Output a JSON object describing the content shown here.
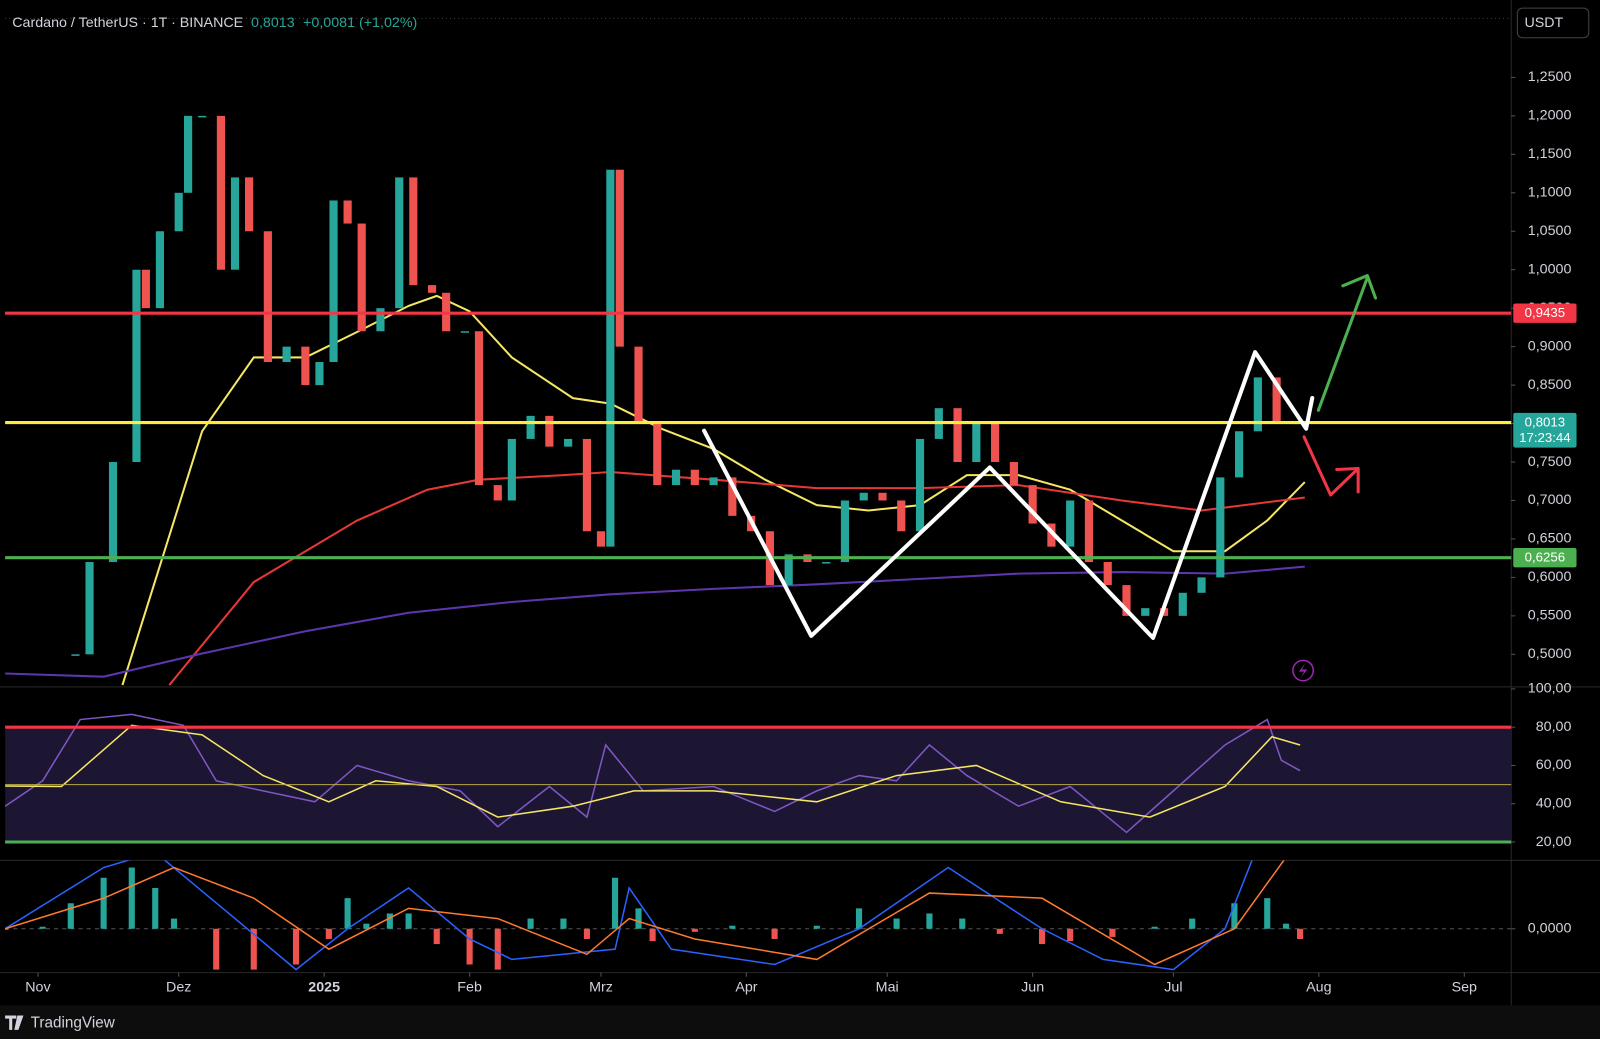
{
  "header": {
    "symbol": "Cardano / TetherUS · 1T · BINANCE",
    "price": "0,8013",
    "change": "+0,0081 (+1,02%)",
    "currency": "USDT"
  },
  "footer": {
    "brand": "TradingView"
  },
  "chart_data": [
    {
      "type": "candlestick",
      "xlim": [
        -7,
        314
      ],
      "xticks": [
        {
          "value": 0,
          "label": "Nov"
        },
        {
          "value": 30,
          "label": "Dez"
        },
        {
          "value": 61,
          "label": "2025"
        },
        {
          "value": 92,
          "label": "Feb"
        },
        {
          "value": 120,
          "label": "Mrz"
        },
        {
          "value": 151,
          "label": "Apr"
        },
        {
          "value": 181,
          "label": "Mai"
        },
        {
          "value": 212,
          "label": "Jun"
        },
        {
          "value": 242,
          "label": "Jul"
        },
        {
          "value": 273,
          "label": "Aug"
        },
        {
          "value": 304,
          "label": "Sep"
        }
      ],
      "ylim": [
        0.459,
        1.344
      ],
      "yticks": [
        {
          "value": 0.5,
          "label": "0,5000"
        },
        {
          "value": 0.55,
          "label": "0,5500"
        },
        {
          "value": 0.6,
          "label": "0,6000"
        },
        {
          "value": 0.65,
          "label": "0,6500"
        },
        {
          "value": 0.7,
          "label": "0,7000"
        },
        {
          "value": 0.75,
          "label": "0,7500"
        },
        {
          "value": 0.8,
          "label": "0,8000"
        },
        {
          "value": 0.85,
          "label": "0,8500"
        },
        {
          "value": 0.9,
          "label": "0,9000"
        },
        {
          "value": 0.95,
          "label": "0,9500"
        },
        {
          "value": 1.0,
          "label": "1,0000"
        },
        {
          "value": 1.05,
          "label": "1,0500"
        },
        {
          "value": 1.1,
          "label": "1,1000"
        },
        {
          "value": 1.15,
          "label": "1,1500"
        },
        {
          "value": 1.2,
          "label": "1,2000"
        },
        {
          "value": 1.25,
          "label": "1,2500"
        }
      ],
      "grid": false,
      "up_color": "#26a69a",
      "down_color": "#ef5350",
      "x": [
        8,
        11,
        16,
        21,
        23,
        26,
        30,
        32,
        35,
        39,
        42,
        45,
        49,
        53,
        57,
        60,
        63,
        66,
        69,
        73,
        77,
        80,
        84,
        87,
        91,
        94,
        98,
        101,
        105,
        109,
        113,
        117,
        120,
        122,
        124,
        128,
        132,
        136,
        140,
        144,
        148,
        152,
        156,
        160,
        164,
        168,
        172,
        176,
        180,
        184,
        188,
        192,
        196,
        200,
        204,
        208,
        212,
        216,
        220,
        224,
        228,
        232,
        236,
        240,
        244,
        248,
        252,
        256,
        260,
        264,
        268
      ],
      "close": [
        0.5,
        0.62,
        0.75,
        1.0,
        0.95,
        1.05,
        1.1,
        1.2,
        1.2,
        1.0,
        1.12,
        1.05,
        0.88,
        0.9,
        0.85,
        0.88,
        1.09,
        1.06,
        0.92,
        0.95,
        1.12,
        0.98,
        0.97,
        0.92,
        0.92,
        0.72,
        0.7,
        0.78,
        0.81,
        0.77,
        0.78,
        0.66,
        0.64,
        1.13,
        0.9,
        0.8,
        0.72,
        0.74,
        0.72,
        0.73,
        0.68,
        0.66,
        0.59,
        0.63,
        0.62,
        0.62,
        0.7,
        0.71,
        0.7,
        0.66,
        0.78,
        0.82,
        0.75,
        0.8,
        0.75,
        0.72,
        0.67,
        0.64,
        0.7,
        0.62,
        0.59,
        0.55,
        0.56,
        0.55,
        0.58,
        0.6,
        0.73,
        0.79,
        0.86,
        0.8,
        0.8013
      ],
      "lines": [
        {
          "color": "#f5e663",
          "x": [
            18,
            35,
            46,
            57,
            68,
            79,
            85,
            92,
            101,
            114,
            122,
            133,
            144,
            155,
            166,
            177,
            188,
            198,
            209,
            220,
            231,
            242,
            253,
            262,
            270
          ],
          "values": [
            0.46,
            0.79,
            0.886,
            0.886,
            0.919,
            0.953,
            0.966,
            0.946,
            0.886,
            0.833,
            0.826,
            0.793,
            0.767,
            0.727,
            0.694,
            0.687,
            0.694,
            0.733,
            0.733,
            0.714,
            0.674,
            0.634,
            0.634,
            0.674,
            0.724
          ]
        },
        {
          "color": "#e53935",
          "x": [
            28,
            46,
            68,
            83,
            94,
            112,
            122,
            144,
            166,
            188,
            209,
            231,
            248,
            270
          ],
          "values": [
            0.46,
            0.594,
            0.674,
            0.714,
            0.727,
            0.733,
            0.737,
            0.727,
            0.716,
            0.716,
            0.72,
            0.7,
            0.687,
            0.704
          ]
        },
        {
          "color": "#5e35b1",
          "x": [
            -7,
            14,
            35,
            57,
            79,
            101,
            122,
            144,
            166,
            188,
            209,
            231,
            253,
            270
          ],
          "values": [
            0.475,
            0.471,
            0.501,
            0.53,
            0.554,
            0.568,
            0.578,
            0.585,
            0.591,
            0.598,
            0.605,
            0.607,
            0.605,
            0.614
          ]
        }
      ],
      "levels": [
        {
          "value": 0.9435,
          "label": "0,9435",
          "color": "#f23645",
          "label_color": "#f23645"
        },
        {
          "value": 0.8013,
          "label": "0,8013",
          "countdown": "17:23:44",
          "color": "#ffeb3b",
          "label_color": "#26a69a"
        },
        {
          "value": 0.6256,
          "label": "0,6256",
          "color": "#4caf50",
          "label_color": "#4caf50"
        }
      ]
    },
    {
      "type": "rsi",
      "ylim": [
        10.4,
        100
      ],
      "yticks": [
        {
          "value": 20,
          "label": "20,00"
        },
        {
          "value": 40,
          "label": "40,00"
        },
        {
          "value": 60,
          "label": "60,00"
        },
        {
          "value": 80,
          "label": "80,00"
        },
        {
          "value": 100,
          "label": "100,00"
        }
      ],
      "band_color": "#1c1633",
      "levels": [
        {
          "value": 80,
          "color": "#f23645"
        },
        {
          "value": 50,
          "color": "#b9a84a"
        },
        {
          "value": 20,
          "color": "#4caf50"
        }
      ],
      "series": [
        {
          "color": "#7e57c2",
          "x": [
            -7,
            1,
            9,
            20,
            31,
            38,
            48,
            59,
            68,
            79,
            90,
            98,
            109,
            117,
            121,
            129,
            144,
            157,
            166,
            175,
            183,
            190,
            198,
            209,
            220,
            232,
            242,
            253,
            262,
            265,
            269
          ],
          "values": [
            38.7,
            52,
            84,
            86.7,
            81,
            52,
            46.7,
            41,
            60,
            52,
            46.7,
            28,
            49,
            33,
            70.7,
            46.7,
            49,
            36,
            46.7,
            54.7,
            52,
            70.7,
            54.7,
            38.7,
            49,
            25,
            46.7,
            70.7,
            84,
            62.7,
            57.3
          ]
        },
        {
          "color": "#f5e663",
          "x": [
            -7,
            5,
            20,
            35,
            48,
            62,
            72,
            85,
            98,
            114,
            127,
            144,
            166,
            183,
            200,
            218,
            237,
            253,
            263,
            269
          ],
          "values": [
            49.3,
            49,
            81,
            76,
            54.7,
            41,
            52,
            49,
            33,
            38.7,
            46.7,
            46.7,
            41,
            54.7,
            60,
            41,
            33,
            49,
            75,
            70.7
          ]
        }
      ]
    },
    {
      "type": "macd",
      "ylim": [
        -0.042,
        0.067
      ],
      "yticks": [
        {
          "value": 0,
          "label": "0,0000"
        }
      ],
      "up_color": "#26a69a",
      "down_color": "#ef5350",
      "x": [
        -7,
        1,
        7,
        14,
        20,
        25,
        29,
        38,
        46,
        55,
        62,
        66,
        70,
        75,
        79,
        85,
        92,
        98,
        105,
        112,
        117,
        123,
        128,
        131,
        140,
        148,
        157,
        166,
        175,
        183,
        190,
        197,
        205,
        214,
        220,
        229,
        238,
        246,
        255,
        262,
        266,
        269
      ],
      "values": [
        0,
        0.002,
        0.025,
        0.05,
        0.06,
        0.04,
        0.01,
        -0.04,
        -0.04,
        -0.035,
        -0.01,
        0.03,
        0.005,
        0.015,
        0.015,
        -0.015,
        -0.035,
        -0.04,
        0.01,
        0.01,
        -0.01,
        0.05,
        0.02,
        -0.012,
        -0.003,
        0.003,
        -0.01,
        0.003,
        0.02,
        0.01,
        0.015,
        0.01,
        -0.005,
        -0.015,
        -0.012,
        -0.008,
        0.002,
        0.01,
        0.025,
        0.03,
        0.005,
        -0.01
      ],
      "lines": [
        {
          "color": "#2962ff",
          "x": [
            -7,
            14,
            25,
            42,
            55,
            66,
            79,
            92,
            101,
            123,
            126,
            135,
            157,
            175,
            194,
            214,
            227,
            242,
            253,
            259
          ],
          "values": [
            0,
            0.06,
            0.075,
            0.01,
            -0.04,
            0,
            0.04,
            -0.01,
            -0.03,
            -0.02,
            0.04,
            -0.02,
            -0.035,
            0,
            0.06,
            0,
            -0.03,
            -0.04,
            0,
            0.07
          ]
        },
        {
          "color": "#ff7a2f",
          "x": [
            -7,
            14,
            29,
            46,
            62,
            79,
            98,
            117,
            126,
            140,
            166,
            190,
            214,
            238,
            255,
            266
          ],
          "values": [
            0,
            0.03,
            0.06,
            0.03,
            -0.02,
            0.02,
            0.01,
            -0.025,
            0.01,
            -0.01,
            -0.03,
            0.035,
            0.03,
            -0.035,
            0,
            0.07
          ]
        }
      ]
    }
  ]
}
